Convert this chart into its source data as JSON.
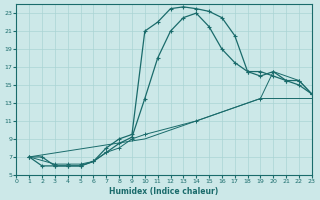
{
  "xlabel": "Humidex (Indice chaleur)",
  "bg_color": "#cce8e8",
  "line_color": "#1a6b6b",
  "xlim": [
    0,
    23
  ],
  "ylim": [
    5,
    24
  ],
  "xticks": [
    0,
    1,
    2,
    3,
    4,
    5,
    6,
    7,
    8,
    9,
    10,
    11,
    12,
    13,
    14,
    15,
    16,
    17,
    18,
    19,
    20,
    21,
    22,
    23
  ],
  "yticks": [
    5,
    7,
    9,
    11,
    13,
    15,
    17,
    19,
    21,
    23
  ],
  "grid_color": "#aad4d4",
  "c1x": [
    1,
    2,
    3,
    4,
    5,
    6,
    7,
    8,
    9,
    10,
    11,
    12,
    13,
    14,
    15,
    16,
    17,
    18,
    19,
    20,
    21,
    22,
    23
  ],
  "c1y": [
    7,
    7,
    6,
    6,
    6,
    6.5,
    8,
    9,
    9.5,
    21,
    22,
    23.5,
    23.7,
    23.5,
    23.2,
    22.5,
    20.5,
    16.5,
    16.5,
    16,
    15.5,
    15,
    14
  ],
  "c2x": [
    1,
    2,
    3,
    4,
    5,
    6,
    7,
    8,
    9,
    10,
    11,
    12,
    13,
    14,
    15,
    16,
    17,
    18,
    19,
    20,
    21,
    22,
    23
  ],
  "c2y": [
    7,
    6,
    6,
    6,
    6,
    6.5,
    7.5,
    8.5,
    9.2,
    13.5,
    18,
    21,
    22.5,
    23,
    21.5,
    19,
    17.5,
    16.5,
    16,
    16.5,
    15.5,
    15.5,
    14
  ],
  "c3x": [
    1,
    3,
    4,
    5,
    6,
    7,
    8,
    9,
    10,
    14,
    19,
    20,
    22,
    23
  ],
  "c3y": [
    7,
    6.2,
    6.2,
    6.2,
    6.5,
    7.5,
    8.0,
    9,
    9.5,
    11,
    13.5,
    16.5,
    15.5,
    14
  ],
  "c4x": [
    1,
    10,
    14,
    19,
    23
  ],
  "c4y": [
    7,
    9,
    11,
    13.5,
    13.5
  ]
}
